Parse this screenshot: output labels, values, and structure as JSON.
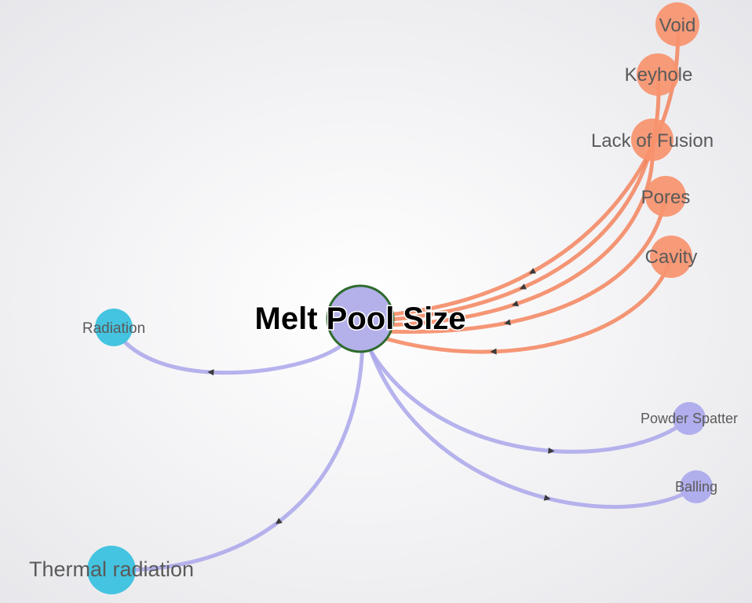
{
  "graph": {
    "center": {
      "label": "Melt Pool Size",
      "color": "#b4b1ea",
      "border_color": "#2e6b2e"
    },
    "colors": {
      "defect": "#f7936e",
      "defect_edge": "#f47a4f",
      "process": "#b0aeec",
      "process_edge": "#a9a6ea",
      "heat": "#44c4e0",
      "arrow": "#3a3a3a"
    },
    "nodes": [
      {
        "id": "void",
        "label": "Void",
        "group": "defect"
      },
      {
        "id": "keyhole",
        "label": "Keyhole",
        "group": "defect"
      },
      {
        "id": "lack_of_fusion",
        "label": "Lack of Fusion",
        "group": "defect"
      },
      {
        "id": "pores",
        "label": "Pores",
        "group": "defect"
      },
      {
        "id": "cavity",
        "label": "Cavity",
        "group": "defect"
      },
      {
        "id": "radiation",
        "label": "Radiation",
        "group": "heat"
      },
      {
        "id": "thermal_radiation",
        "label": "Thermal radiation",
        "group": "heat"
      },
      {
        "id": "powder_spatter",
        "label": "Powder Spatter",
        "group": "process"
      },
      {
        "id": "balling",
        "label": "Balling",
        "group": "process"
      }
    ],
    "edges": [
      {
        "from": "void",
        "to": "center"
      },
      {
        "from": "keyhole",
        "to": "center"
      },
      {
        "from": "lack_of_fusion",
        "to": "center"
      },
      {
        "from": "pores",
        "to": "center"
      },
      {
        "from": "cavity",
        "to": "center"
      },
      {
        "from": "center",
        "to": "radiation"
      },
      {
        "from": "center",
        "to": "thermal_radiation"
      },
      {
        "from": "center",
        "to": "powder_spatter"
      },
      {
        "from": "center",
        "to": "balling"
      }
    ]
  }
}
